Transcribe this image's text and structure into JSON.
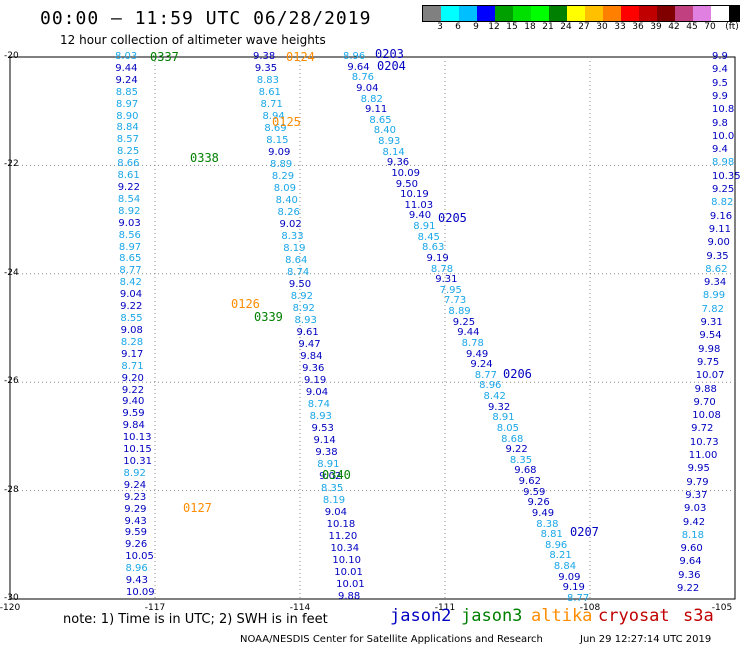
{
  "header": {
    "title": "00:00 – 11:59 UTC 06/28/2019",
    "subtitle": "12 hour collection of altimeter wave heights"
  },
  "legend": {
    "colors": [
      "#808080",
      "#00ffff",
      "#00bfff",
      "#0000ff",
      "#00a000",
      "#00e000",
      "#00ff00",
      "#008000",
      "#ffff00",
      "#ffc000",
      "#ff8000",
      "#ff0000",
      "#c00000",
      "#800000",
      "#c04080",
      "#e080e0",
      "#ffffff",
      "#000000"
    ],
    "labels": [
      "3",
      "6",
      "9",
      "12",
      "15",
      "18",
      "21",
      "24",
      "27",
      "30",
      "33",
      "36",
      "39",
      "42",
      "45",
      "70",
      "(ft)"
    ]
  },
  "map": {
    "lat_labels": [
      "-20",
      "-22",
      "-24",
      "-26",
      "-28",
      "-30"
    ],
    "lon_labels": [
      "-120",
      "-117",
      "-114",
      "-111",
      "-108",
      "-105"
    ],
    "pass_labels": [
      {
        "text": "0337",
        "color": "#008000"
      },
      {
        "text": "0124",
        "color": "#ff8c00"
      },
      {
        "text": "0203",
        "color": "#0000c0"
      },
      {
        "text": "0204",
        "color": "#0000c0"
      },
      {
        "text": "0125",
        "color": "#ff8c00"
      },
      {
        "text": "0338",
        "color": "#008000"
      },
      {
        "text": "0205",
        "color": "#0000c0"
      },
      {
        "text": "0126",
        "color": "#ff8c00"
      },
      {
        "text": "0339",
        "color": "#008000"
      },
      {
        "text": "0206",
        "color": "#0000c0"
      },
      {
        "text": "0340",
        "color": "#008000"
      },
      {
        "text": "0127",
        "color": "#ff8c00"
      },
      {
        "text": "0207",
        "color": "#0000c0"
      }
    ],
    "track_a": [
      "8.03",
      "9.44",
      "9.24",
      "8.85",
      "8.97",
      "8.90",
      "8.84",
      "8.57",
      "8.25",
      "8.66",
      "8.61",
      "9.22",
      "8.54",
      "8.92",
      "9.03",
      "8.56",
      "8.97",
      "8.65",
      "8.77",
      "8.42",
      "9.04",
      "9.22",
      "8.55",
      "9.08",
      "8.28",
      "9.17",
      "8.71",
      "9.20",
      "9.22",
      "9.40",
      "9.59",
      "9.84",
      "10.13",
      "10.15",
      "10.31",
      "8.92",
      "9.24",
      "9.23",
      "9.29",
      "9.43",
      "9.59",
      "9.26",
      "10.05",
      "8.96",
      "9.43",
      "10.09"
    ],
    "track_b": [
      "9.38",
      "9.35",
      "8.83",
      "8.61",
      "8.71",
      "8.94",
      "8.69",
      "8.15",
      "9.09",
      "8.89",
      "8.29",
      "8.09",
      "8.40",
      "8.26",
      "9.02",
      "8.33",
      "8.19",
      "8.64",
      "8.74",
      "9.50",
      "8.92",
      "8.92",
      "8.93",
      "9.61",
      "9.47",
      "9.84",
      "9.36",
      "9.19",
      "9.04",
      "8.74",
      "8.93",
      "9.53",
      "9.14",
      "9.38",
      "8.91",
      "9.02",
      "8.35",
      "8.19",
      "9.04",
      "10.18",
      "11.20",
      "10.34",
      "10.10",
      "10.01",
      "10.01",
      "9.88"
    ],
    "track_c": [
      "8.96",
      "9.64",
      "8.76",
      "9.04",
      "8.82",
      "9.11",
      "8.65",
      "8.40",
      "8.93",
      "8.14",
      "9.36",
      "10.09",
      "9.50",
      "10.19",
      "11.03",
      "9.40",
      "8.91",
      "8.45",
      "8.63",
      "9.19",
      "8.78",
      "9.31",
      "7.95",
      "7.73",
      "8.89",
      "9.25",
      "9.44",
      "8.78",
      "9.49",
      "9.24",
      "8.77",
      "8.96",
      "8.42",
      "9.32",
      "8.91",
      "8.05",
      "8.68",
      "9.22",
      "8.35",
      "9.68",
      "9.62",
      "9.59",
      "9.26",
      "9.49",
      "8.38",
      "8.81",
      "8.96",
      "8.21",
      "8.84",
      "9.09",
      "9.19",
      "8.77"
    ],
    "track_d": [
      "9.9",
      "9.4",
      "9.5",
      "9.9",
      "10.8",
      "9.8",
      "10.0",
      "9.4",
      "8.98",
      "10.35",
      "9.25",
      "8.82",
      "9.16",
      "9.11",
      "9.00",
      "9.35",
      "8.62",
      "9.34",
      "8.99",
      "7.82",
      "9.31",
      "9.54",
      "9.98",
      "9.75",
      "10.07",
      "9.88",
      "9.70",
      "10.08",
      "9.72",
      "10.73",
      "11.00",
      "9.95",
      "9.79",
      "9.37",
      "9.03",
      "9.42",
      "8.18",
      "9.60",
      "9.64",
      "9.36",
      "9.22"
    ]
  },
  "footer": {
    "note": "note:  1) Time is in UTC;  2) SWH is in feet",
    "missions": [
      {
        "name": "jason2",
        "color": "#0000c0"
      },
      {
        "name": "jason3",
        "color": "#008000"
      },
      {
        "name": "altika",
        "color": "#ff8c00"
      },
      {
        "name": "cryosat",
        "color": "#c00000"
      },
      {
        "name": "s3a",
        "color": "#c00000"
      }
    ],
    "credit": "NOAA/NESDIS Center for Satellite Applications and Research",
    "timestamp": "Jun 29 12:27:14 UTC 2019"
  }
}
